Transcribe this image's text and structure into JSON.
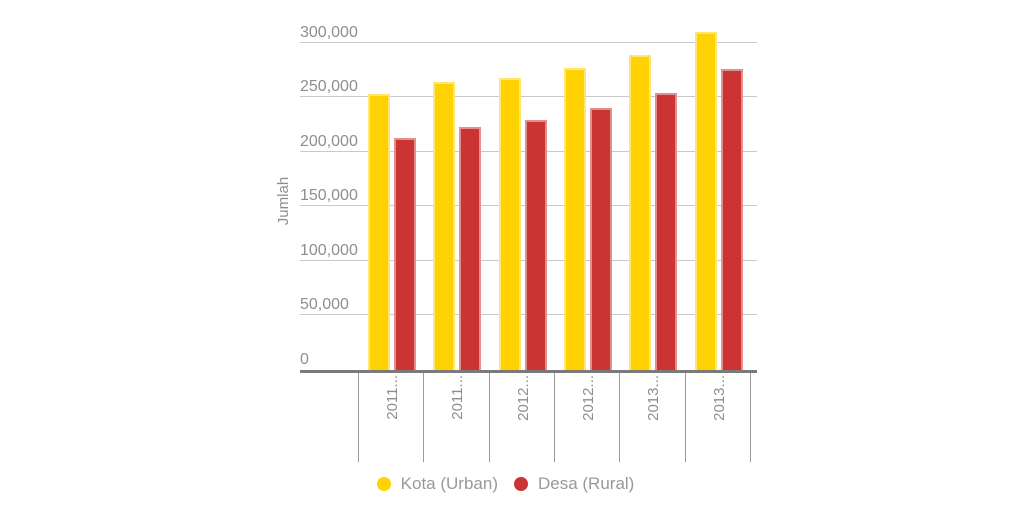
{
  "chart_data": {
    "type": "bar",
    "title": "",
    "xlabel": "",
    "ylabel": "Jumlah",
    "categories": [
      "2011...",
      "2011...",
      "2012...",
      "2012...",
      "2013...",
      "2013..."
    ],
    "series": [
      {
        "name": "Kota (Urban)",
        "color": "#FFD203",
        "values": [
          253000,
          264000,
          268000,
          277000,
          289000,
          310000
        ]
      },
      {
        "name": "Desa (Rural)",
        "color": "#CB3433",
        "values": [
          213000,
          223000,
          229000,
          240000,
          254000,
          276000
        ]
      }
    ],
    "y_axis": {
      "ticks": [
        {
          "value": 0,
          "label": "0"
        },
        {
          "value": 50000,
          "label": "50,000"
        },
        {
          "value": 100000,
          "label": "100,000"
        },
        {
          "value": 150000,
          "label": "150,000"
        },
        {
          "value": 200000,
          "label": "200,000"
        },
        {
          "value": 250000,
          "label": "250,000"
        },
        {
          "value": 300000,
          "label": "300,000"
        }
      ],
      "range": [
        0,
        310000
      ]
    },
    "grid": true,
    "legend_position": "bottom",
    "x_labels_rotated": true,
    "x_labels_truncated": true
  },
  "colors": {
    "urban_bar": "#FFD203",
    "rural_bar": "#CB3433",
    "gridline": "#C9C9C9",
    "axis_line": "#7A7A7A",
    "cell_separator": "#9B9B9B",
    "label_text": "#8E8E8E",
    "legend_text": "#999999",
    "background": "#FFFFFF"
  }
}
